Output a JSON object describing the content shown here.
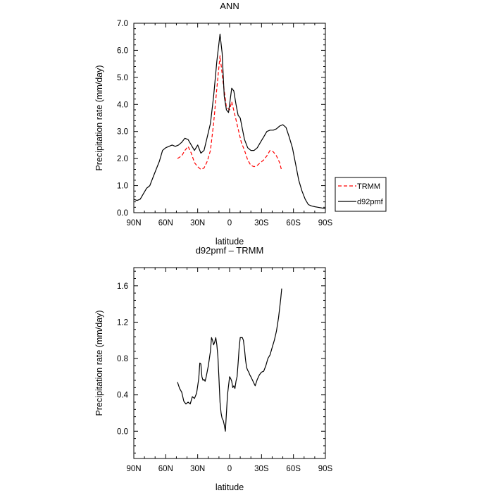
{
  "chart_data": [
    {
      "type": "line",
      "title": "ANN",
      "xlabel": "latitude",
      "ylabel": "Precipitation rate (mm/day)",
      "x_ticks": [
        90,
        60,
        30,
        0,
        -30,
        -60,
        -90
      ],
      "x_tick_labels": [
        "90N",
        "60N",
        "30N",
        "0",
        "30S",
        "60S",
        "90S"
      ],
      "xlim": [
        90,
        -90
      ],
      "ylim": [
        0,
        7
      ],
      "y_ticks": [
        0,
        1,
        2,
        3,
        4,
        5,
        6,
        7
      ],
      "y_tick_labels": [
        "0.0",
        "1.0",
        "2.0",
        "3.0",
        "4.0",
        "5.0",
        "6.0",
        "7.0"
      ],
      "legend_position": "outside-right",
      "series": [
        {
          "name": "TRMM",
          "color": "#ff0000",
          "dash": "dashed",
          "x": [
            49,
            45,
            42,
            39,
            36,
            33,
            30,
            27,
            24,
            21,
            18,
            15,
            12,
            9,
            6,
            3,
            0,
            -2,
            -5,
            -8,
            -11,
            -14,
            -17,
            -20,
            -23,
            -26,
            -29,
            -32,
            -35,
            -38,
            -41,
            -44,
            -47,
            -49
          ],
          "y": [
            2.0,
            2.1,
            2.3,
            2.45,
            2.2,
            1.85,
            1.7,
            1.6,
            1.65,
            1.9,
            2.3,
            3.3,
            4.6,
            5.8,
            4.8,
            3.9,
            3.8,
            4.1,
            3.6,
            3.1,
            2.6,
            2.3,
            1.95,
            1.75,
            1.7,
            1.75,
            1.85,
            1.95,
            2.1,
            2.3,
            2.25,
            2.1,
            1.85,
            1.55
          ]
        },
        {
          "name": "d92pmf",
          "color": "#000000",
          "dash": "solid",
          "x": [
            90,
            87,
            84,
            81,
            78,
            75,
            72,
            69,
            66,
            63,
            60,
            57,
            54,
            51,
            48,
            45,
            42,
            39,
            36,
            33,
            30,
            27,
            24,
            21,
            18,
            15,
            12,
            9,
            7,
            5,
            3,
            1,
            0,
            -2,
            -4,
            -6,
            -8,
            -10,
            -12,
            -14,
            -17,
            -20,
            -23,
            -26,
            -29,
            -32,
            -35,
            -38,
            -41,
            -44,
            -47,
            -50,
            -53,
            -56,
            -59,
            -62,
            -65,
            -68,
            -71,
            -74,
            -77,
            -80,
            -83,
            -86,
            -90
          ],
          "y": [
            0.5,
            0.45,
            0.5,
            0.7,
            0.9,
            1.0,
            1.3,
            1.6,
            1.9,
            2.3,
            2.4,
            2.45,
            2.5,
            2.45,
            2.5,
            2.6,
            2.75,
            2.7,
            2.5,
            2.3,
            2.5,
            2.2,
            2.3,
            2.8,
            3.3,
            4.3,
            5.6,
            6.6,
            5.9,
            4.3,
            3.8,
            3.7,
            4.0,
            4.6,
            4.5,
            4.0,
            3.6,
            3.5,
            3.1,
            2.7,
            2.4,
            2.3,
            2.3,
            2.4,
            2.6,
            2.8,
            3.0,
            3.05,
            3.05,
            3.1,
            3.2,
            3.25,
            3.15,
            2.8,
            2.4,
            1.8,
            1.2,
            0.8,
            0.5,
            0.3,
            0.25,
            0.22,
            0.2,
            0.18,
            0.15
          ]
        }
      ]
    },
    {
      "type": "line",
      "title": "d92pmf – TRMM",
      "xlabel": "latitude",
      "ylabel": "Precipitation rate (mm/day)",
      "x_ticks": [
        90,
        60,
        30,
        0,
        -30,
        -60,
        -90
      ],
      "x_tick_labels": [
        "90N",
        "60N",
        "30N",
        "0",
        "30S",
        "60S",
        "90S"
      ],
      "xlim": [
        90,
        -90
      ],
      "ylim": [
        -0.3,
        1.8
      ],
      "y_ticks": [
        0,
        0.4,
        0.8,
        1.2,
        1.6
      ],
      "y_tick_labels": [
        "0.0",
        "0.4",
        "0.8",
        "1.2",
        "1.6"
      ],
      "series": [
        {
          "color": "#000000",
          "dash": "solid",
          "x": [
            49,
            47,
            45,
            43,
            41,
            39,
            37,
            35,
            33,
            31,
            30,
            29,
            28,
            27,
            26,
            25,
            24,
            23,
            22,
            21,
            20,
            19,
            18,
            17,
            16,
            15,
            14,
            13,
            12,
            11,
            10,
            9,
            8,
            7,
            6,
            5,
            4,
            3,
            2,
            1,
            0,
            -1,
            -2,
            -3,
            -4,
            -5,
            -6,
            -7,
            -8,
            -9,
            -10,
            -11,
            -12,
            -13,
            -14,
            -15,
            -16,
            -17,
            -18,
            -19,
            -20,
            -22,
            -24,
            -26,
            -28,
            -30,
            -32,
            -34,
            -36,
            -38,
            -40,
            -42,
            -44,
            -46,
            -48,
            -49
          ],
          "y": [
            0.54,
            0.47,
            0.43,
            0.33,
            0.3,
            0.32,
            0.3,
            0.38,
            0.36,
            0.42,
            0.5,
            0.58,
            0.75,
            0.74,
            0.6,
            0.56,
            0.57,
            0.55,
            0.6,
            0.66,
            0.72,
            0.8,
            0.88,
            1.03,
            1.0,
            0.95,
            0.98,
            1.03,
            0.95,
            0.82,
            0.58,
            0.32,
            0.2,
            0.14,
            0.12,
            0.07,
            0.0,
            0.2,
            0.4,
            0.5,
            0.6,
            0.58,
            0.55,
            0.48,
            0.5,
            0.47,
            0.55,
            0.6,
            0.75,
            0.92,
            1.03,
            1.03,
            1.03,
            1.0,
            0.9,
            0.78,
            0.7,
            0.67,
            0.65,
            0.62,
            0.6,
            0.55,
            0.5,
            0.57,
            0.62,
            0.65,
            0.66,
            0.72,
            0.8,
            0.84,
            0.92,
            1.0,
            1.1,
            1.25,
            1.45,
            1.57
          ]
        }
      ]
    }
  ]
}
